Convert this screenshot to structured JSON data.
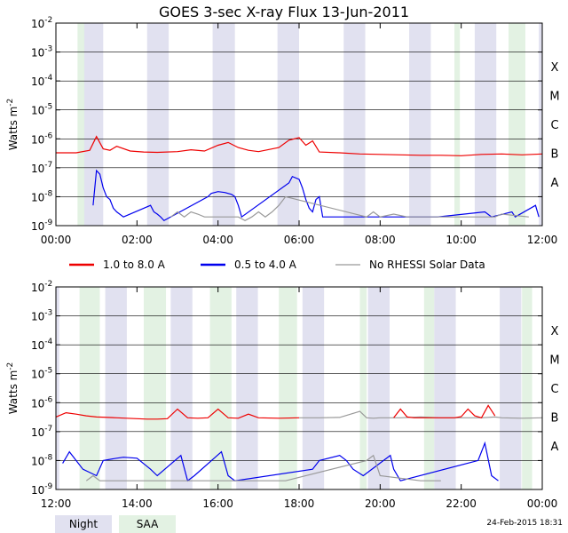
{
  "title": "GOES 3-sec X-ray Flux   13-Jun-2011",
  "footer": "24-Feb-2015 18:31",
  "key": {
    "night": "Night",
    "saa": "SAA"
  },
  "colors": {
    "series_long": "#ee0000",
    "series_short": "#0000ee",
    "no_rhessi": "#999999",
    "night_shade": "#e1e1f0",
    "saa_shade": "#e3f2e3"
  },
  "chart_data": [
    {
      "type": "line",
      "panel": "top",
      "xlim": [
        "00:00",
        "12:00"
      ],
      "x_ticks": [
        "00:00",
        "02:00",
        "04:00",
        "06:00",
        "08:00",
        "10:00",
        "12:00"
      ],
      "ylabel": "Watts m",
      "ylabel_sup": "-2",
      "y_scale": "log",
      "ylim": [
        1e-09,
        0.01
      ],
      "y_ticks": [
        {
          "base": "10",
          "exp": "-2"
        },
        {
          "base": "10",
          "exp": "-3"
        },
        {
          "base": "10",
          "exp": "-4"
        },
        {
          "base": "10",
          "exp": "-5"
        },
        {
          "base": "10",
          "exp": "-6"
        },
        {
          "base": "10",
          "exp": "-7"
        },
        {
          "base": "10",
          "exp": "-8"
        },
        {
          "base": "10",
          "exp": "-9"
        }
      ],
      "flare_classes": [
        "X",
        "M",
        "C",
        "B",
        "A"
      ],
      "night_intervals": [
        [
          "00:40",
          "01:10"
        ],
        [
          "02:15",
          "02:47"
        ],
        [
          "03:52",
          "04:25"
        ],
        [
          "05:28",
          "06:00"
        ],
        [
          "07:06",
          "07:38"
        ],
        [
          "08:43",
          "09:15"
        ],
        [
          "10:20",
          "10:52"
        ],
        [
          "11:55",
          "12:00"
        ]
      ],
      "saa_intervals": [
        [
          "00:32",
          "00:42"
        ],
        [
          "09:50",
          "09:58"
        ],
        [
          "11:10",
          "11:35"
        ]
      ],
      "grid": true,
      "series": [
        {
          "name": "1.0 to 8.0 A",
          "color": "#ee0000",
          "x": [
            "00:00",
            "00:30",
            "00:50",
            "01:00",
            "01:10",
            "01:20",
            "01:30",
            "01:50",
            "02:10",
            "02:30",
            "03:00",
            "03:20",
            "03:40",
            "04:00",
            "04:15",
            "04:30",
            "04:45",
            "05:00",
            "05:30",
            "05:45",
            "06:00",
            "06:10",
            "06:20",
            "06:30",
            "07:00",
            "07:30",
            "08:00",
            "08:30",
            "09:00",
            "09:30",
            "10:00",
            "10:30",
            "11:00",
            "11:30",
            "12:00"
          ],
          "y": [
            3.3e-07,
            3.3e-07,
            4e-07,
            1.2e-06,
            4.5e-07,
            4e-07,
            5.5e-07,
            3.8e-07,
            3.5e-07,
            3.4e-07,
            3.6e-07,
            4.2e-07,
            3.8e-07,
            6e-07,
            7.5e-07,
            5e-07,
            4e-07,
            3.6e-07,
            5e-07,
            9e-07,
            1.1e-06,
            6e-07,
            8.5e-07,
            3.5e-07,
            3.3e-07,
            3e-07,
            2.9e-07,
            2.8e-07,
            2.7e-07,
            2.7e-07,
            2.6e-07,
            2.9e-07,
            3e-07,
            2.8e-07,
            3e-07
          ]
        },
        {
          "name": "0.5 to 4.0 A",
          "color": "#0000ee",
          "x": [
            "00:55",
            "01:00",
            "01:05",
            "01:10",
            "01:15",
            "01:20",
            "01:25",
            "01:30",
            "01:40",
            "02:20",
            "02:25",
            "02:30",
            "02:35",
            "02:40",
            "03:45",
            "03:50",
            "04:00",
            "04:10",
            "04:20",
            "04:25",
            "04:30",
            "04:35",
            "05:45",
            "05:50",
            "06:00",
            "06:05",
            "06:10",
            "06:15",
            "06:20",
            "06:25",
            "06:30",
            "06:35",
            "09:25",
            "10:35",
            "10:45",
            "11:15",
            "11:20",
            "11:50",
            "11:55"
          ],
          "y": [
            5e-09,
            8e-08,
            6e-08,
            2e-08,
            1e-08,
            8e-09,
            4e-09,
            3e-09,
            2e-09,
            5e-09,
            3e-09,
            2.5e-09,
            2e-09,
            1.5e-09,
            1e-08,
            1.3e-08,
            1.5e-08,
            1.4e-08,
            1.2e-08,
            1e-08,
            5e-09,
            2e-09,
            3e-08,
            5e-08,
            4e-08,
            2e-08,
            8e-09,
            4e-09,
            3e-09,
            8e-09,
            1e-08,
            2e-09,
            2e-09,
            3e-09,
            2e-09,
            3e-09,
            2e-09,
            5e-09,
            2e-09
          ]
        },
        {
          "name": "No RHESSI Solar Data",
          "color": "#999999",
          "x": [
            "02:50",
            "03:00",
            "03:10",
            "03:20",
            "03:30",
            "03:40",
            "04:30",
            "04:40",
            "04:50",
            "05:00",
            "05:10",
            "05:20",
            "05:30",
            "05:40",
            "07:40",
            "07:50",
            "08:00",
            "08:20",
            "08:40",
            "09:00",
            "09:40",
            "10:10",
            "10:50",
            "11:00",
            "11:40"
          ],
          "y": [
            2e-09,
            3e-09,
            2e-09,
            3e-09,
            2.5e-09,
            2e-09,
            2e-09,
            1.5e-09,
            2e-09,
            3e-09,
            2e-09,
            3e-09,
            5e-09,
            1e-08,
            2e-09,
            3e-09,
            2e-09,
            2.5e-09,
            2e-09,
            2e-09,
            2e-09,
            2e-09,
            2e-09,
            2.5e-09,
            2e-09
          ]
        }
      ]
    },
    {
      "type": "line",
      "panel": "bottom",
      "xlim": [
        "12:00",
        "00:00"
      ],
      "x_ticks": [
        "12:00",
        "14:00",
        "16:00",
        "18:00",
        "20:00",
        "22:00",
        "00:00"
      ],
      "ylabel": "Watts m",
      "ylabel_sup": "-2",
      "y_scale": "log",
      "ylim": [
        1e-09,
        0.01
      ],
      "y_ticks": [
        {
          "base": "10",
          "exp": "-2"
        },
        {
          "base": "10",
          "exp": "-3"
        },
        {
          "base": "10",
          "exp": "-4"
        },
        {
          "base": "10",
          "exp": "-5"
        },
        {
          "base": "10",
          "exp": "-6"
        },
        {
          "base": "10",
          "exp": "-7"
        },
        {
          "base": "10",
          "exp": "-8"
        },
        {
          "base": "10",
          "exp": "-9"
        }
      ],
      "flare_classes": [
        "X",
        "M",
        "C",
        "B",
        "A"
      ],
      "night_intervals": [
        [
          "12:00",
          "12:05"
        ],
        [
          "13:13",
          "13:45"
        ],
        [
          "14:50",
          "15:22"
        ],
        [
          "16:27",
          "16:59"
        ],
        [
          "18:05",
          "18:37"
        ],
        [
          "19:42",
          "20:14"
        ],
        [
          "21:20",
          "21:52"
        ],
        [
          "22:57",
          "23:29"
        ]
      ],
      "saa_intervals": [
        [
          "12:35",
          "13:05"
        ],
        [
          "14:10",
          "14:43"
        ],
        [
          "15:48",
          "16:20"
        ],
        [
          "17:30",
          "17:57"
        ],
        [
          "19:30",
          "19:40"
        ],
        [
          "21:05",
          "21:20"
        ],
        [
          "23:30",
          "23:45"
        ]
      ],
      "grid": true,
      "series": [
        {
          "name": "1.0 to 8.0 A",
          "color": "#ee0000",
          "x": [
            "12:00",
            "12:15",
            "12:30",
            "12:45",
            "13:00",
            "13:30",
            "14:00",
            "14:15",
            "14:30",
            "14:45",
            "15:00",
            "15:15",
            "15:30",
            "15:45",
            "16:00",
            "16:15",
            "16:30",
            "16:45",
            "17:00",
            "17:30",
            "18:00"
          ],
          "y": [
            3.2e-07,
            4.5e-07,
            4e-07,
            3.5e-07,
            3.2e-07,
            3e-07,
            2.8e-07,
            2.7e-07,
            2.7e-07,
            2.8e-07,
            6e-07,
            3e-07,
            2.9e-07,
            3e-07,
            6e-07,
            3e-07,
            2.9e-07,
            4e-07,
            3e-07,
            2.9e-07,
            3e-07
          ]
        },
        {
          "name": "No RHESSI Solar Data",
          "color": "#999999",
          "x": [
            "18:00",
            "18:30",
            "19:00",
            "19:30",
            "19:40",
            "19:50",
            "20:00",
            "20:30",
            "21:00",
            "21:30",
            "22:00",
            "22:30",
            "22:50",
            "23:00",
            "23:30",
            "00:00"
          ],
          "y": [
            3e-07,
            3e-07,
            3.1e-07,
            5e-07,
            3e-07,
            2.9e-07,
            3e-07,
            3e-07,
            3.2e-07,
            3e-07,
            3e-07,
            3e-07,
            3.2e-07,
            3e-07,
            2.9e-07,
            3e-07
          ]
        },
        {
          "name": "1.0 to 8.0 A",
          "color": "#ee0000",
          "x": [
            "20:20",
            "20:30",
            "20:40",
            "20:50",
            "21:00",
            "21:50",
            "22:00",
            "22:10",
            "22:20",
            "22:30",
            "22:40",
            "22:50"
          ],
          "y": [
            3e-07,
            6e-07,
            3.2e-07,
            3e-07,
            3e-07,
            3e-07,
            3.3e-07,
            6e-07,
            3.5e-07,
            3e-07,
            8e-07,
            3.5e-07
          ]
        },
        {
          "name": "0.5 to 4.0 A",
          "color": "#0000ee",
          "x": [
            "12:10",
            "12:20",
            "12:30",
            "12:40",
            "13:00",
            "13:10",
            "13:30",
            "13:40",
            "14:00",
            "14:20",
            "14:30",
            "15:05",
            "15:15",
            "15:25",
            "16:05",
            "16:15",
            "16:25",
            "18:20",
            "18:30",
            "19:00",
            "19:10",
            "19:20",
            "19:35",
            "20:15",
            "20:20",
            "20:30",
            "22:25",
            "22:35",
            "22:45",
            "22:55"
          ],
          "y": [
            8e-09,
            2e-08,
            1e-08,
            5e-09,
            3e-09,
            1e-08,
            1.2e-08,
            1.3e-08,
            1.2e-08,
            5e-09,
            3e-09,
            1.5e-08,
            2e-09,
            3e-09,
            2e-08,
            3e-09,
            2e-09,
            5e-09,
            1e-08,
            1.5e-08,
            1e-08,
            5e-09,
            3e-09,
            1.5e-08,
            5e-09,
            2e-09,
            1e-08,
            4e-08,
            3e-09,
            2e-09
          ]
        },
        {
          "name": "No RHESSI Solar Data",
          "color": "#999999",
          "x": [
            "12:45",
            "12:55",
            "13:05",
            "13:20",
            "17:10",
            "17:20",
            "17:40",
            "19:40",
            "19:50",
            "20:00",
            "21:00",
            "21:30"
          ],
          "y": [
            2e-09,
            3e-09,
            2e-09,
            2e-09,
            2e-09,
            2e-09,
            2e-09,
            1e-08,
            1.5e-08,
            3e-09,
            2e-09,
            2e-09
          ]
        }
      ]
    }
  ],
  "legend": {
    "placement": "between-panels",
    "entries": [
      {
        "name": "1.0 to 8.0 A",
        "color": "#ee0000"
      },
      {
        "name": "0.5 to 4.0 A",
        "color": "#0000ee"
      },
      {
        "name": "No RHESSI Solar Data",
        "color": "#999999"
      }
    ]
  }
}
